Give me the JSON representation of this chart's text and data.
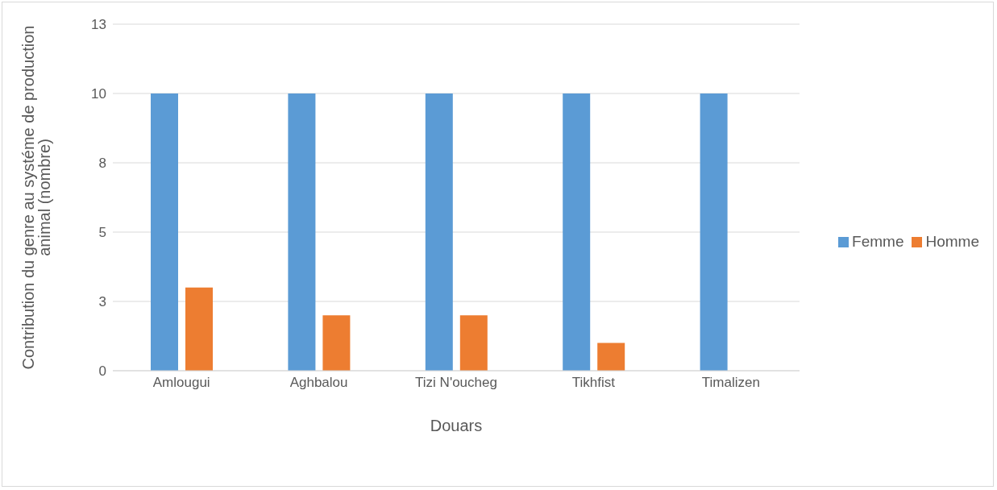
{
  "chart_data": {
    "type": "bar",
    "xlabel": "Douars",
    "ylabel": "Contribution du genre au systéme de production animal (nombre)",
    "categories": [
      "Amlougui",
      "Aghbalou",
      "Tizi N'oucheg",
      "Tikhfist",
      "Timalizen"
    ],
    "series": [
      {
        "name": "Femme",
        "color": "#5b9bd5",
        "values": [
          10,
          10,
          10,
          10,
          10
        ]
      },
      {
        "name": "Homme",
        "color": "#ed7d31",
        "values": [
          3,
          2,
          2,
          1,
          0
        ]
      }
    ],
    "ylim": [
      0,
      12.5
    ],
    "yticks": [
      0,
      {
        "value": 2.5,
        "label": "3"
      },
      5,
      {
        "value": 7.5,
        "label": "8"
      },
      10,
      {
        "value": 12.5,
        "label": "13"
      }
    ],
    "grid": "y",
    "legend": "right"
  }
}
